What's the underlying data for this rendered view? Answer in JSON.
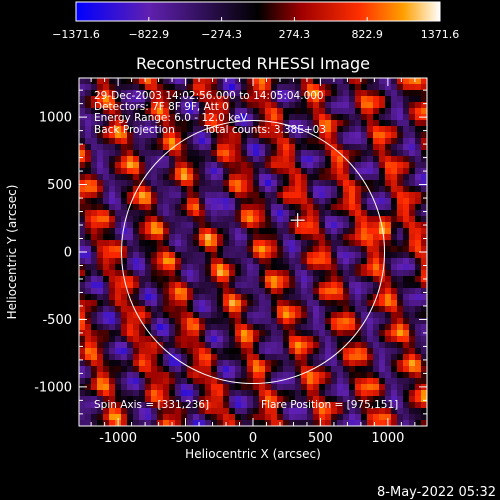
{
  "chart_data": {
    "type": "heatmap",
    "title": "Reconstructed RHESSI Image",
    "xlabel": "Heliocentric X (arcsec)",
    "ylabel": "Heliocentric Y (arcsec)",
    "xlim": [
      -1290,
      1290
    ],
    "ylim": [
      -1290,
      1290
    ],
    "xticks": [
      -1000,
      -500,
      0,
      500,
      1000
    ],
    "yticks": [
      -1000,
      -500,
      0,
      500,
      1000
    ],
    "colorbar": {
      "min": -1371.6,
      "max": 1371.6,
      "tick_values": [
        -1371.6,
        -822.9,
        -274.3,
        274.3,
        822.9,
        1371.6
      ],
      "tick_labels": [
        "−1371.6",
        "−822.9",
        "−274.3",
        "274.3",
        "822.9",
        "1371.6"
      ]
    },
    "annotations": [
      "29-Dec-2003 14:02:56.000 to 14:05:04.000",
      "Detectors: 7F 8F 9F, Att 0",
      "Energy Range: 6.0 - 12.0 keV",
      "Back Projection",
      "Total counts: 3.38E+03"
    ],
    "spin_axis_label": "Spin Axis = [331,236]",
    "flare_position_label": "Flare Position = [975,151]",
    "spin_axis": [
      331,
      236
    ],
    "flare_position": [
      975,
      151
    ],
    "solar_limb_radius": 975,
    "footer_date": "8-May-2022 05:32",
    "colors": {
      "background": "#000000",
      "limb": "#ffffff",
      "palette_low": "#0000ff",
      "palette_mid": "#000000",
      "palette_high": "#ffffff"
    }
  }
}
